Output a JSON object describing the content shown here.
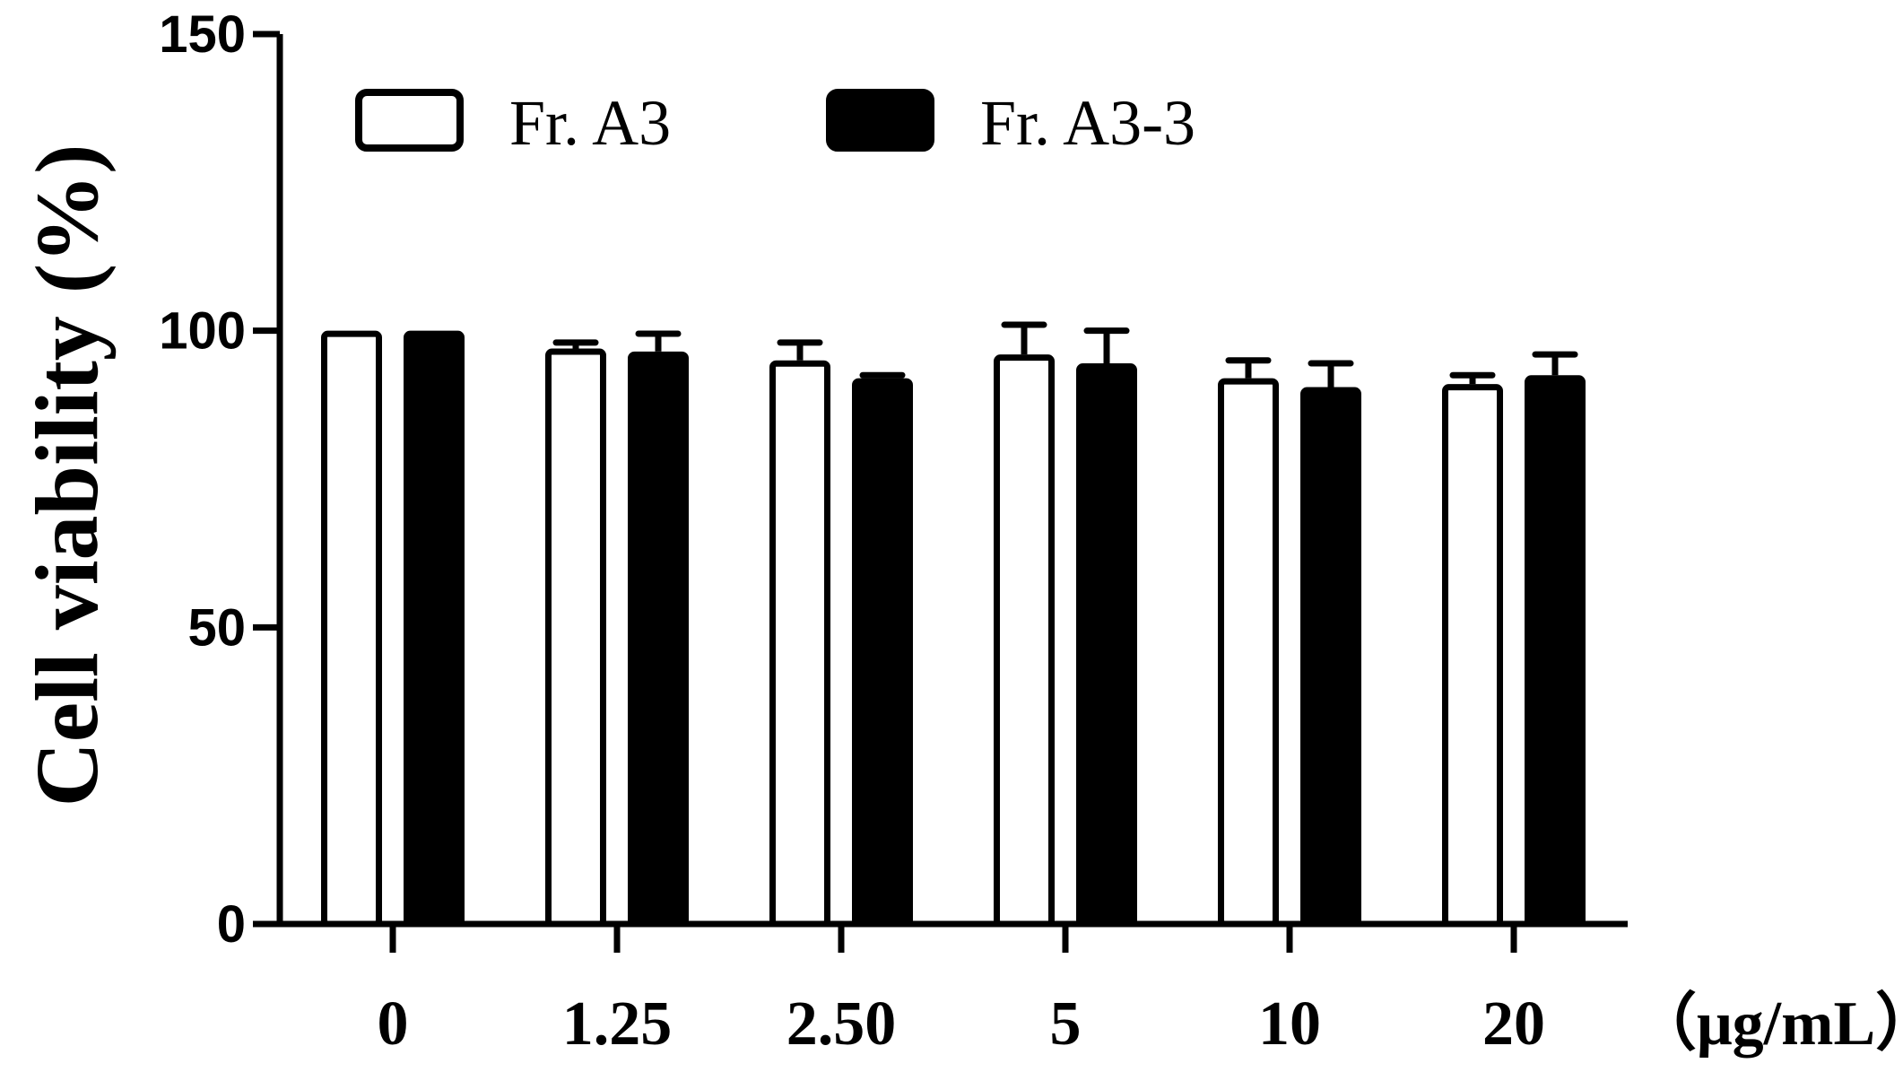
{
  "chart_data": {
    "type": "bar",
    "ylabel": "Cell viability (%)",
    "x_unit_label": "（μg/mL）",
    "categories": [
      "0",
      "1.25",
      "2.50",
      "5",
      "10",
      "20"
    ],
    "ylim": [
      0,
      150
    ],
    "yticks": [
      0,
      50,
      100,
      150
    ],
    "legend_position": "top-left",
    "grid": false,
    "series": [
      {
        "name": "Fr. A3",
        "fill": "#ffffff",
        "stroke": "#000000",
        "values": [
          100,
          97,
          95,
          96,
          92,
          91
        ],
        "errors": [
          0,
          1,
          3,
          5,
          3,
          1.5
        ]
      },
      {
        "name": "Fr. A3-3",
        "fill": "#000000",
        "stroke": "#000000",
        "values": [
          100,
          96.5,
          92,
          94.5,
          90.5,
          92.5
        ],
        "errors": [
          0,
          3,
          0.5,
          5.5,
          4,
          3.5
        ]
      }
    ]
  }
}
